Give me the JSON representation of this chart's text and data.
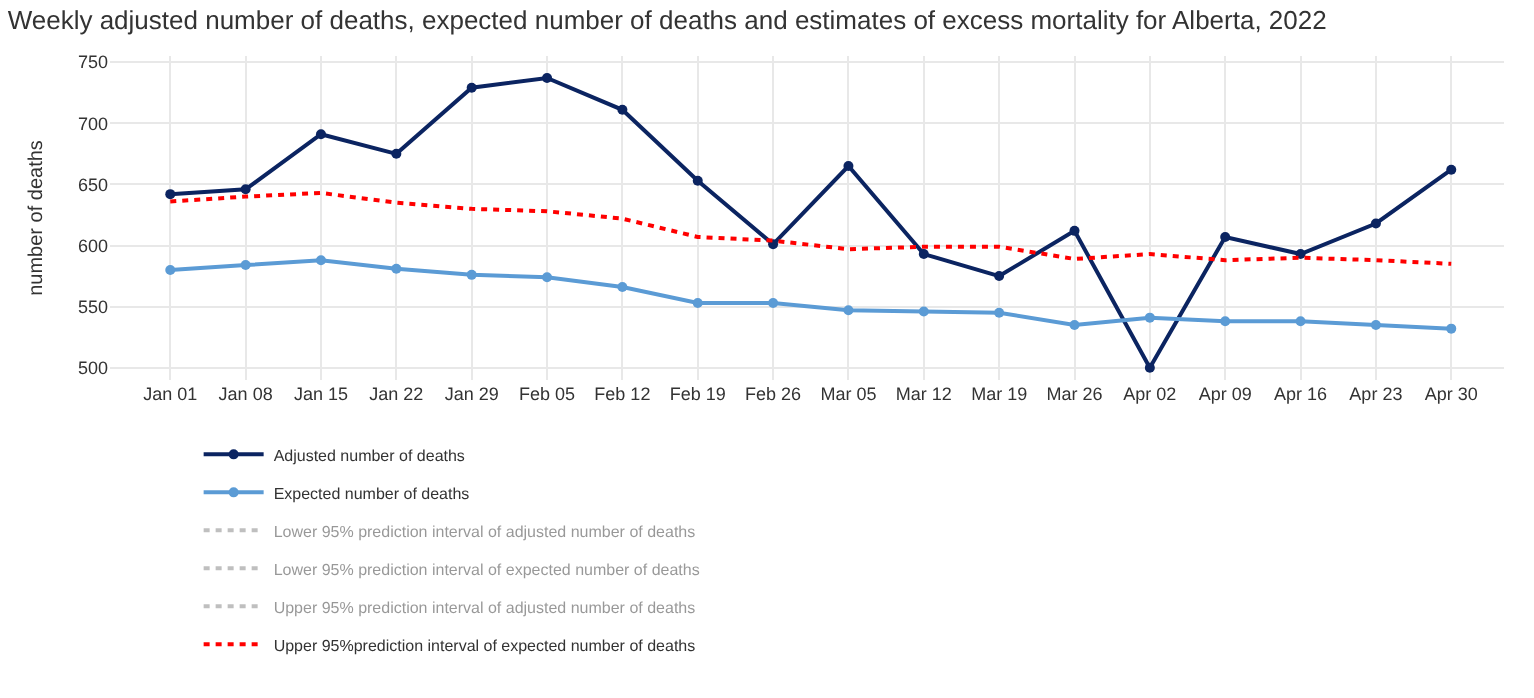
{
  "chart_data": {
    "type": "line",
    "title": "Weekly adjusted number of deaths, expected number of deaths and estimates of excess mortality for Alberta, 2022",
    "ylabel": "number of deaths",
    "categories": [
      "Jan 01",
      "Jan 08",
      "Jan 15",
      "Jan 22",
      "Jan 29",
      "Feb 05",
      "Feb 12",
      "Feb 19",
      "Feb 26",
      "Mar 05",
      "Mar 12",
      "Mar 19",
      "Mar 26",
      "Apr 02",
      "Apr 09",
      "Apr 16",
      "Apr 23",
      "Apr 30"
    ],
    "series": [
      {
        "name": "Adjusted number of deaths",
        "color": "#0b2461",
        "marker": "circle",
        "line_style": "solid",
        "values": [
          642,
          646,
          691,
          675,
          729,
          737,
          711,
          653,
          601,
          665,
          593,
          575,
          612,
          500,
          607,
          593,
          618,
          662
        ]
      },
      {
        "name": "Expected number of deaths",
        "color": "#5b9bd5",
        "marker": "circle",
        "line_style": "solid",
        "values": [
          580,
          584,
          588,
          581,
          576,
          574,
          566,
          553,
          553,
          547,
          546,
          545,
          535,
          541,
          538,
          538,
          535,
          532
        ]
      },
      {
        "name": "Lower 95% prediction interval of adjusted number of deaths",
        "color": "#808080",
        "marker": "none",
        "line_style": "dotted",
        "values": [
          null,
          null,
          null,
          null,
          null,
          null,
          null,
          null,
          null,
          null,
          null,
          null,
          null,
          null,
          null,
          null,
          null,
          null
        ]
      },
      {
        "name": "Lower 95% prediction interval of expected number of deaths",
        "color": "#808080",
        "marker": "none",
        "line_style": "dotted",
        "values": [
          null,
          null,
          null,
          null,
          null,
          null,
          null,
          null,
          null,
          null,
          null,
          null,
          null,
          null,
          null,
          null,
          null,
          null
        ]
      },
      {
        "name": "Upper 95% prediction interval of adjusted number of deaths",
        "color": "#808080",
        "marker": "none",
        "line_style": "dotted",
        "values": [
          null,
          null,
          null,
          null,
          null,
          null,
          null,
          null,
          null,
          null,
          null,
          null,
          null,
          null,
          null,
          null,
          null,
          null
        ]
      },
      {
        "name": "Upper 95%prediction interval of expected number of deaths",
        "color": "#ff0000",
        "marker": "none",
        "line_style": "dotted",
        "values": [
          636,
          640,
          643,
          635,
          630,
          628,
          622,
          607,
          604,
          597,
          599,
          599,
          589,
          593,
          588,
          590,
          588,
          585
        ]
      }
    ],
    "ylim": [
      490,
      755
    ],
    "yticks": [
      500,
      550,
      600,
      650,
      700,
      750
    ],
    "grid": true,
    "legend": "bottom"
  }
}
